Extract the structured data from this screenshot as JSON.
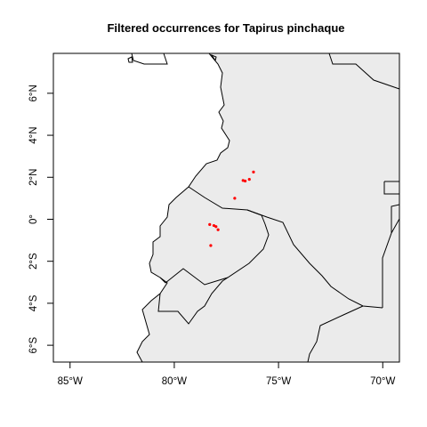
{
  "chart_data": {
    "type": "scatter",
    "title": "Filtered occurrences for Tapirus pinchaque",
    "x_range": [
      -85.8,
      -69.2
    ],
    "y_range": [
      -6.8,
      7.9
    ],
    "x_ticks": [
      {
        "value": -85,
        "label": "85°W"
      },
      {
        "value": -80,
        "label": "80°W"
      },
      {
        "value": -75,
        "label": "75°W"
      },
      {
        "value": -70,
        "label": "70°W"
      }
    ],
    "y_ticks": [
      {
        "value": 6,
        "label": "6°N"
      },
      {
        "value": 4,
        "label": "4°N"
      },
      {
        "value": 2,
        "label": "2°N"
      },
      {
        "value": 0,
        "label": "0°"
      },
      {
        "value": -2,
        "label": "2°S"
      },
      {
        "value": -4,
        "label": "4°S"
      },
      {
        "value": -6,
        "label": "6°S"
      }
    ],
    "land_color": "#ebebeb",
    "ocean_color": "#ffffff",
    "point_color": "#ff0000",
    "points": [
      {
        "x": -76.2,
        "y": 2.25
      },
      {
        "x": -76.4,
        "y": 1.9
      },
      {
        "x": -76.7,
        "y": 1.85
      },
      {
        "x": -76.6,
        "y": 1.82
      },
      {
        "x": -77.1,
        "y": 1.0
      },
      {
        "x": -78.3,
        "y": -0.25
      },
      {
        "x": -78.1,
        "y": -0.3
      },
      {
        "x": -78.0,
        "y": -0.35
      },
      {
        "x": -77.9,
        "y": -0.5
      },
      {
        "x": -78.25,
        "y": -1.25
      }
    ]
  }
}
